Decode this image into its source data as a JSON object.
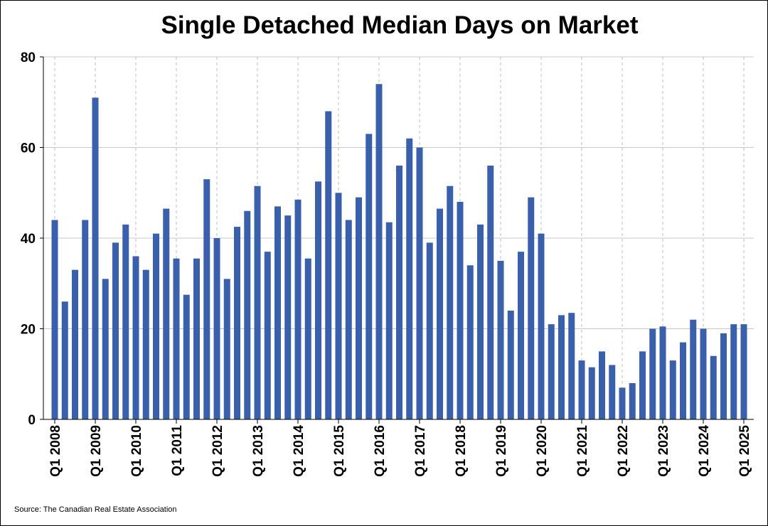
{
  "chart_data": {
    "type": "bar",
    "title": "Single Detached Median Days on Market",
    "source": "Source: The Canadian Real Estate Association",
    "xlabel": "",
    "ylabel": "",
    "ylim": [
      0,
      80
    ],
    "yticks": [
      0,
      20,
      40,
      60,
      80
    ],
    "grid": true,
    "bar_color": "#3A60AC",
    "x_tick_labels": [
      "Q1 2008",
      "Q1 2009",
      "Q1 2010",
      "Q1 2011",
      "Q1 2012",
      "Q1 2013",
      "Q1 2014",
      "Q1 2015",
      "Q1 2016",
      "Q1 2017",
      "Q1 2018",
      "Q1 2019",
      "Q1 2020",
      "Q1 2021",
      "Q1 2022",
      "Q1 2023",
      "Q1 2024",
      "Q1 2025"
    ],
    "categories": [
      "Q1 2008",
      "Q2 2008",
      "Q3 2008",
      "Q4 2008",
      "Q1 2009",
      "Q2 2009",
      "Q3 2009",
      "Q4 2009",
      "Q1 2010",
      "Q2 2010",
      "Q3 2010",
      "Q4 2010",
      "Q1 2011",
      "Q2 2011",
      "Q3 2011",
      "Q4 2011",
      "Q1 2012",
      "Q2 2012",
      "Q3 2012",
      "Q4 2012",
      "Q1 2013",
      "Q2 2013",
      "Q3 2013",
      "Q4 2013",
      "Q1 2014",
      "Q2 2014",
      "Q3 2014",
      "Q4 2014",
      "Q1 2015",
      "Q2 2015",
      "Q3 2015",
      "Q4 2015",
      "Q1 2016",
      "Q2 2016",
      "Q3 2016",
      "Q4 2016",
      "Q1 2017",
      "Q2 2017",
      "Q3 2017",
      "Q4 2017",
      "Q1 2018",
      "Q2 2018",
      "Q3 2018",
      "Q4 2018",
      "Q1 2019",
      "Q2 2019",
      "Q3 2019",
      "Q4 2019",
      "Q1 2020",
      "Q2 2020",
      "Q3 2020",
      "Q4 2020",
      "Q1 2021",
      "Q2 2021",
      "Q3 2021",
      "Q4 2021",
      "Q1 2022",
      "Q2 2022",
      "Q3 2022",
      "Q4 2022",
      "Q1 2023",
      "Q2 2023",
      "Q3 2023",
      "Q4 2023",
      "Q1 2024",
      "Q2 2024",
      "Q3 2024",
      "Q4 2024",
      "Q1 2025"
    ],
    "values": [
      44,
      26,
      33,
      44,
      71,
      31,
      39,
      43,
      36,
      33,
      41,
      46.5,
      35.5,
      27.5,
      35.5,
      53,
      40,
      31,
      42.5,
      46,
      51.5,
      37,
      47,
      45,
      48.5,
      35.5,
      52.5,
      68,
      50,
      44,
      49,
      63,
      74,
      43.5,
      56,
      62,
      60,
      39,
      46.5,
      51.5,
      48,
      34,
      43,
      56,
      35,
      24,
      37,
      49,
      41,
      21,
      23,
      23.5,
      13,
      11.5,
      15,
      12,
      7,
      8,
      15,
      20,
      20.5,
      13,
      17,
      22,
      20,
      14,
      19,
      21,
      21
    ]
  }
}
